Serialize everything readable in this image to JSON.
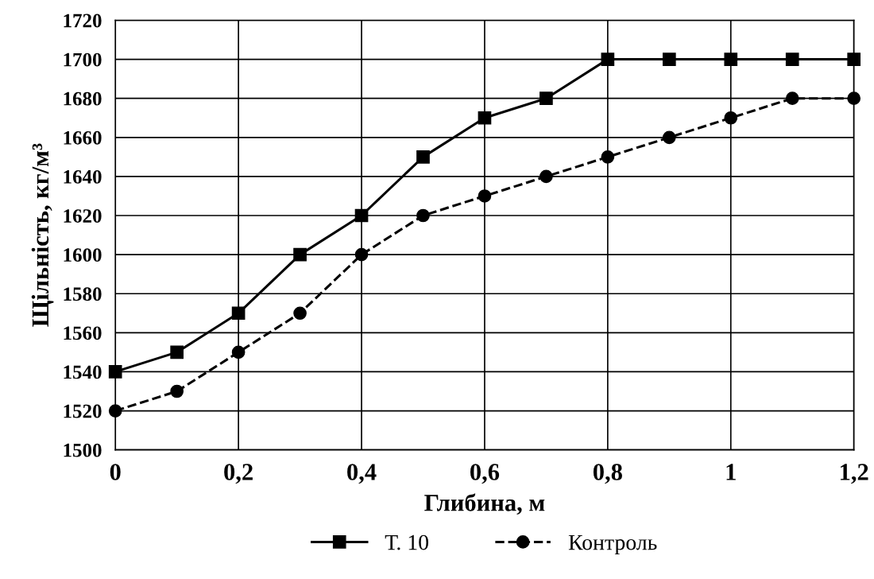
{
  "chart_data": {
    "type": "line",
    "xlabel": "Глибина, м",
    "ylabel": "Щільність, кг/м³",
    "x": [
      0,
      0.1,
      0.2,
      0.3,
      0.4,
      0.5,
      0.6,
      0.7,
      0.8,
      0.9,
      1,
      1.1,
      1.2
    ],
    "series": [
      {
        "name": "Т. 10",
        "color": "#000000",
        "marker": "square",
        "line_style": "solid",
        "values": [
          1540,
          1550,
          1570,
          1600,
          1620,
          1650,
          1670,
          1680,
          1700,
          1700,
          1700,
          1700,
          1700
        ]
      },
      {
        "name": "Контроль",
        "color": "#000000",
        "marker": "circle",
        "line_style": "dashed",
        "values": [
          1520,
          1530,
          1550,
          1570,
          1600,
          1620,
          1630,
          1640,
          1650,
          1660,
          1670,
          1680,
          1680
        ]
      }
    ],
    "xlim": [
      0,
      1.2
    ],
    "ylim": [
      1500,
      1720
    ],
    "xticks": [
      0,
      {
        "value": 0.2,
        "label": "0,2"
      },
      {
        "value": 0.4,
        "label": "0,4"
      },
      {
        "value": 0.6,
        "label": "0,6"
      },
      {
        "value": 0.8,
        "label": "0,8"
      },
      1,
      {
        "value": 1.2,
        "label": "1,2"
      }
    ],
    "yticks": [
      1500,
      1520,
      1540,
      1560,
      1580,
      1600,
      1620,
      1640,
      1660,
      1680,
      1700,
      1720
    ],
    "grid": true,
    "legend": "bottom"
  }
}
